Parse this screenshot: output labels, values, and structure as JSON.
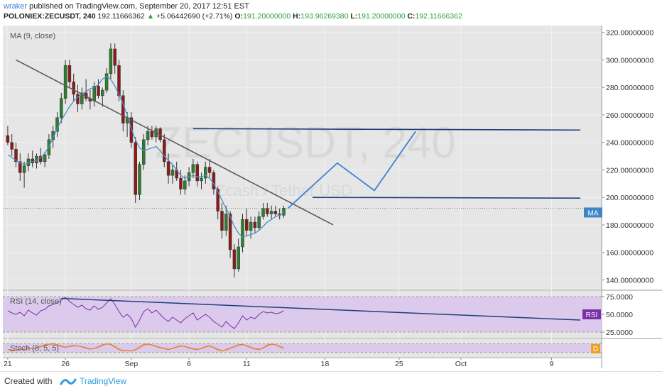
{
  "header": {
    "user": "wraker",
    "published": "published on TradingView.com, September 20, 2017 12:51 EST",
    "symbol": "POLONIEX:ZECUSDT, 240",
    "last": "192.11666362",
    "arrow": "▲",
    "change": "+5.06442690 (+2.71%)",
    "open_label": "O:",
    "open": "191.20000000",
    "high_label": "H:",
    "high": "193.96269380",
    "low_label": "L:",
    "low": "191.20000000",
    "close_label": "C:",
    "close": "192.11666362"
  },
  "watermark": {
    "symbol": "ZECUSDT, 240",
    "desc": "Zcash / Tether USD"
  },
  "colors": {
    "up": "#2e7d32",
    "down": "#8b1a1a",
    "ma": "#4a90c8",
    "trend": "#5a5a5a",
    "levels": "#1f3f7a",
    "projection": "#3d82d6",
    "rsi_line": "#7c2fa8",
    "rsi_band": "#d9c7ec",
    "stoch_k": "#e07b39",
    "stoch_d": "#f0a35a"
  },
  "chart_data": {
    "type": "candlestick",
    "title": "ZECUSDT, 240",
    "x_ticks": [
      "21",
      "26",
      "Sep",
      "6",
      "11",
      "18",
      "25",
      "Oct",
      "9"
    ],
    "y_ticks": [
      "320.00000000",
      "300.00000000",
      "280.00000000",
      "260.00000000",
      "240.00000000",
      "220.00000000",
      "200.00000000",
      "180.00000000",
      "160.00000000",
      "140.00000000"
    ],
    "ylim": [
      133,
      325
    ],
    "last_price": 192.12,
    "indicator_label": "MA (9, close)",
    "ma_badge": "MA",
    "candles": [
      {
        "o": 245,
        "h": 252,
        "l": 238,
        "c": 240
      },
      {
        "o": 240,
        "h": 246,
        "l": 230,
        "c": 235
      },
      {
        "o": 235,
        "h": 240,
        "l": 222,
        "c": 226
      },
      {
        "o": 226,
        "h": 232,
        "l": 212,
        "c": 218
      },
      {
        "o": 218,
        "h": 226,
        "l": 207,
        "c": 223
      },
      {
        "o": 223,
        "h": 232,
        "l": 219,
        "c": 228
      },
      {
        "o": 228,
        "h": 234,
        "l": 222,
        "c": 225
      },
      {
        "o": 225,
        "h": 232,
        "l": 221,
        "c": 230
      },
      {
        "o": 230,
        "h": 236,
        "l": 224,
        "c": 226
      },
      {
        "o": 226,
        "h": 233,
        "l": 222,
        "c": 231
      },
      {
        "o": 231,
        "h": 246,
        "l": 228,
        "c": 242
      },
      {
        "o": 242,
        "h": 252,
        "l": 236,
        "c": 248
      },
      {
        "o": 248,
        "h": 262,
        "l": 244,
        "c": 258
      },
      {
        "o": 258,
        "h": 276,
        "l": 254,
        "c": 272
      },
      {
        "o": 272,
        "h": 300,
        "l": 268,
        "c": 296
      },
      {
        "o": 296,
        "h": 300,
        "l": 280,
        "c": 284
      },
      {
        "o": 284,
        "h": 290,
        "l": 270,
        "c": 275
      },
      {
        "o": 275,
        "h": 282,
        "l": 262,
        "c": 268
      },
      {
        "o": 268,
        "h": 280,
        "l": 264,
        "c": 276
      },
      {
        "o": 276,
        "h": 286,
        "l": 270,
        "c": 272
      },
      {
        "o": 272,
        "h": 278,
        "l": 264,
        "c": 270
      },
      {
        "o": 270,
        "h": 284,
        "l": 266,
        "c": 281
      },
      {
        "o": 281,
        "h": 286,
        "l": 272,
        "c": 274
      },
      {
        "o": 274,
        "h": 280,
        "l": 266,
        "c": 278
      },
      {
        "o": 278,
        "h": 294,
        "l": 276,
        "c": 290
      },
      {
        "o": 290,
        "h": 312,
        "l": 286,
        "c": 308
      },
      {
        "o": 308,
        "h": 312,
        "l": 290,
        "c": 296
      },
      {
        "o": 296,
        "h": 300,
        "l": 270,
        "c": 274
      },
      {
        "o": 274,
        "h": 278,
        "l": 248,
        "c": 254
      },
      {
        "o": 254,
        "h": 262,
        "l": 244,
        "c": 258
      },
      {
        "o": 258,
        "h": 262,
        "l": 236,
        "c": 240
      },
      {
        "o": 240,
        "h": 244,
        "l": 196,
        "c": 202
      },
      {
        "o": 202,
        "h": 226,
        "l": 198,
        "c": 224
      },
      {
        "o": 224,
        "h": 246,
        "l": 220,
        "c": 242
      },
      {
        "o": 242,
        "h": 252,
        "l": 238,
        "c": 248
      },
      {
        "o": 248,
        "h": 252,
        "l": 242,
        "c": 244
      },
      {
        "o": 244,
        "h": 252,
        "l": 240,
        "c": 250
      },
      {
        "o": 250,
        "h": 251,
        "l": 240,
        "c": 242
      },
      {
        "o": 242,
        "h": 246,
        "l": 222,
        "c": 226
      },
      {
        "o": 226,
        "h": 232,
        "l": 210,
        "c": 216
      },
      {
        "o": 216,
        "h": 224,
        "l": 210,
        "c": 220
      },
      {
        "o": 220,
        "h": 226,
        "l": 212,
        "c": 214
      },
      {
        "o": 214,
        "h": 220,
        "l": 202,
        "c": 206
      },
      {
        "o": 206,
        "h": 216,
        "l": 202,
        "c": 212
      },
      {
        "o": 212,
        "h": 222,
        "l": 208,
        "c": 218
      },
      {
        "o": 218,
        "h": 228,
        "l": 214,
        "c": 224
      },
      {
        "o": 224,
        "h": 226,
        "l": 208,
        "c": 212
      },
      {
        "o": 212,
        "h": 218,
        "l": 206,
        "c": 214
      },
      {
        "o": 214,
        "h": 226,
        "l": 210,
        "c": 222
      },
      {
        "o": 222,
        "h": 228,
        "l": 214,
        "c": 218
      },
      {
        "o": 218,
        "h": 220,
        "l": 202,
        "c": 206
      },
      {
        "o": 206,
        "h": 208,
        "l": 184,
        "c": 190
      },
      {
        "o": 190,
        "h": 196,
        "l": 170,
        "c": 176
      },
      {
        "o": 176,
        "h": 194,
        "l": 172,
        "c": 188
      },
      {
        "o": 188,
        "h": 190,
        "l": 156,
        "c": 162
      },
      {
        "o": 162,
        "h": 166,
        "l": 142,
        "c": 148
      },
      {
        "o": 148,
        "h": 170,
        "l": 146,
        "c": 164
      },
      {
        "o": 164,
        "h": 188,
        "l": 160,
        "c": 184
      },
      {
        "o": 184,
        "h": 192,
        "l": 172,
        "c": 176
      },
      {
        "o": 176,
        "h": 186,
        "l": 170,
        "c": 182
      },
      {
        "o": 182,
        "h": 186,
        "l": 174,
        "c": 178
      },
      {
        "o": 178,
        "h": 190,
        "l": 176,
        "c": 186
      },
      {
        "o": 186,
        "h": 196,
        "l": 184,
        "c": 192
      },
      {
        "o": 192,
        "h": 196,
        "l": 186,
        "c": 188
      },
      {
        "o": 188,
        "h": 194,
        "l": 184,
        "c": 190
      },
      {
        "o": 190,
        "h": 194,
        "l": 186,
        "c": 188
      },
      {
        "o": 188,
        "h": 192,
        "l": 184,
        "c": 187
      },
      {
        "o": 187,
        "h": 193.96,
        "l": 185,
        "c": 192.12
      }
    ],
    "ma": [
      231,
      229,
      227,
      225,
      224,
      225,
      226,
      227,
      229,
      232,
      237,
      243,
      250,
      256,
      261,
      266,
      270,
      273,
      275,
      277,
      279,
      280,
      282,
      286,
      288,
      286,
      281,
      275,
      268,
      260,
      250,
      242,
      236,
      234,
      235,
      236,
      237,
      234,
      230,
      227,
      224,
      220,
      216,
      214,
      215,
      216,
      215,
      215,
      216,
      214,
      210,
      204,
      198,
      192,
      186,
      179,
      174,
      171,
      172,
      173,
      174,
      176,
      179,
      182,
      184,
      186,
      187,
      189
    ],
    "trendline": {
      "start": [
        2,
        300
      ],
      "end": [
        79,
        180
      ]
    },
    "resistance_upper": {
      "start": [
        45,
        250
      ],
      "end": [
        139,
        249
      ]
    },
    "resistance_lower": {
      "start": [
        74,
        200
      ],
      "end": [
        139,
        199.5
      ]
    },
    "projection": [
      [
        68,
        192
      ],
      [
        80,
        225
      ],
      [
        89,
        205
      ],
      [
        99,
        248
      ]
    ],
    "rsi": {
      "label": "RSI (14, close)",
      "badge": "RSI",
      "y_ticks": [
        "75.0000",
        "50.0000",
        "25.0000"
      ],
      "values": [
        55,
        52,
        50,
        53,
        48,
        56,
        52,
        49,
        55,
        57,
        62,
        64,
        66,
        70,
        74,
        68,
        64,
        60,
        63,
        58,
        56,
        62,
        57,
        60,
        66,
        72,
        64,
        54,
        46,
        50,
        44,
        32,
        42,
        54,
        58,
        52,
        56,
        50,
        44,
        40,
        46,
        42,
        38,
        44,
        48,
        52,
        42,
        46,
        50,
        46,
        40,
        36,
        32,
        40,
        34,
        30,
        38,
        48,
        42,
        46,
        44,
        50,
        54,
        52,
        53,
        51,
        52,
        55
      ],
      "trendline": {
        "start": [
          13,
          72.5
        ],
        "end": [
          139,
          42
        ]
      }
    },
    "stoch": {
      "label": "Stoch (8, 5, 5)",
      "badge": "D",
      "k": [
        40,
        30,
        35,
        45,
        40,
        50,
        44,
        52,
        62,
        72,
        76,
        80,
        72,
        60,
        54,
        62,
        68,
        64,
        58,
        50,
        42,
        48,
        58,
        72,
        80,
        74,
        56,
        40,
        30,
        36,
        30,
        40,
        58,
        74,
        78,
        70,
        60,
        52,
        46,
        40,
        48,
        58,
        66,
        60,
        50,
        44,
        40,
        48,
        60,
        66,
        52,
        38,
        30,
        40,
        50,
        60,
        72,
        76,
        64,
        52,
        44,
        40,
        52,
        70,
        78,
        72,
        60,
        48
      ],
      "d": [
        42,
        36,
        34,
        40,
        42,
        46,
        46,
        50,
        56,
        66,
        72,
        76,
        74,
        66,
        58,
        58,
        64,
        64,
        60,
        54,
        46,
        46,
        54,
        66,
        76,
        76,
        62,
        46,
        36,
        34,
        32,
        36,
        50,
        66,
        74,
        72,
        64,
        56,
        50,
        44,
        46,
        54,
        62,
        62,
        54,
        48,
        42,
        46,
        56,
        62,
        56,
        44,
        34,
        36,
        46,
        56,
        66,
        72,
        68,
        58,
        48,
        44,
        48,
        62,
        74,
        74,
        64,
        54
      ]
    }
  },
  "footer": {
    "created_with": "Created with",
    "brand": "TradingView"
  }
}
